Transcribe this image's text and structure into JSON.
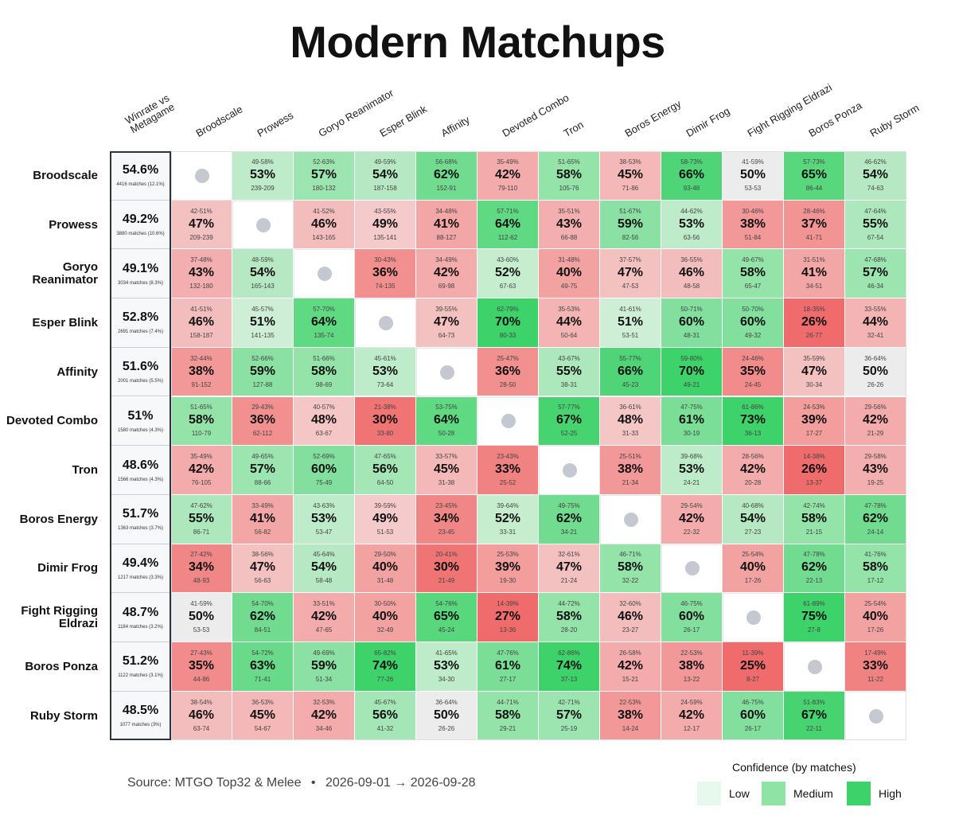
{
  "title": "Modern Matchups",
  "source": "Source: MTGO Top32 & Melee",
  "date_range": "2026-09-01 → 2026-09-28",
  "separator": "•",
  "legend": {
    "title": "Confidence (by matches)",
    "items": [
      {
        "label": "Low",
        "color": "#e7f8ec"
      },
      {
        "label": "Medium",
        "color": "#8fe3a4"
      },
      {
        "label": "High",
        "color": "#3ed26a"
      }
    ]
  },
  "colors": {
    "red_strong": "#f06b6b",
    "red_light": "#f5cfcf",
    "neutral": "#ececec",
    "green_light": "#d8f0dc",
    "green_strong": "#3ed26a",
    "diag_dot": "#c4c8d0",
    "overall_bg": "#f6f8fa"
  },
  "chart_data": {
    "type": "heatmap",
    "title": "Modern Matchups",
    "overall_header": "Winrate vs Metagame",
    "columns": [
      "Broodscale",
      "Prowess",
      "Goryo Reanimator",
      "Esper Blink",
      "Affinity",
      "Devoted Combo",
      "Tron",
      "Boros Energy",
      "Dimir Frog",
      "Fight Rigging Eldrazi",
      "Boros Ponza",
      "Ruby Storm"
    ],
    "rows": [
      {
        "name": "Broodscale",
        "overall": "54.6%",
        "matches": "4416 matches (12.1%)",
        "cells": [
          null,
          {
            "ci": "49-58%",
            "wr": 53,
            "rec": "239-209"
          },
          {
            "ci": "52-63%",
            "wr": 57,
            "rec": "180-132"
          },
          {
            "ci": "49-59%",
            "wr": 54,
            "rec": "187-158"
          },
          {
            "ci": "56-68%",
            "wr": 62,
            "rec": "152-91"
          },
          {
            "ci": "35-49%",
            "wr": 42,
            "rec": "79-110"
          },
          {
            "ci": "51-65%",
            "wr": 58,
            "rec": "105-76"
          },
          {
            "ci": "38-53%",
            "wr": 45,
            "rec": "71-86"
          },
          {
            "ci": "58-73%",
            "wr": 66,
            "rec": "93-48"
          },
          {
            "ci": "41-59%",
            "wr": 50,
            "rec": "53-53"
          },
          {
            "ci": "57-73%",
            "wr": 65,
            "rec": "86-44"
          },
          {
            "ci": "46-62%",
            "wr": 54,
            "rec": "74-63"
          }
        ]
      },
      {
        "name": "Prowess",
        "overall": "49.2%",
        "matches": "3880 matches (10.6%)",
        "cells": [
          {
            "ci": "42-51%",
            "wr": 47,
            "rec": "209-239"
          },
          null,
          {
            "ci": "41-52%",
            "wr": 46,
            "rec": "143-165"
          },
          {
            "ci": "43-55%",
            "wr": 49,
            "rec": "135-141"
          },
          {
            "ci": "34-48%",
            "wr": 41,
            "rec": "88-127"
          },
          {
            "ci": "57-71%",
            "wr": 64,
            "rec": "112-62"
          },
          {
            "ci": "35-51%",
            "wr": 43,
            "rec": "66-88"
          },
          {
            "ci": "51-67%",
            "wr": 59,
            "rec": "82-56"
          },
          {
            "ci": "44-62%",
            "wr": 53,
            "rec": "63-56"
          },
          {
            "ci": "30-46%",
            "wr": 38,
            "rec": "51-84"
          },
          {
            "ci": "28-46%",
            "wr": 37,
            "rec": "41-71"
          },
          {
            "ci": "47-64%",
            "wr": 55,
            "rec": "67-54"
          }
        ]
      },
      {
        "name": "Goryo Reanimator",
        "overall": "49.1%",
        "matches": "3034 matches (8.3%)",
        "cells": [
          {
            "ci": "37-48%",
            "wr": 43,
            "rec": "132-180"
          },
          {
            "ci": "48-59%",
            "wr": 54,
            "rec": "165-143"
          },
          null,
          {
            "ci": "30-43%",
            "wr": 36,
            "rec": "74-135"
          },
          {
            "ci": "34-49%",
            "wr": 42,
            "rec": "69-98"
          },
          {
            "ci": "43-60%",
            "wr": 52,
            "rec": "67-63"
          },
          {
            "ci": "31-48%",
            "wr": 40,
            "rec": "49-75"
          },
          {
            "ci": "37-57%",
            "wr": 47,
            "rec": "47-53"
          },
          {
            "ci": "36-55%",
            "wr": 46,
            "rec": "48-58"
          },
          {
            "ci": "49-67%",
            "wr": 58,
            "rec": "65-47"
          },
          {
            "ci": "31-51%",
            "wr": 41,
            "rec": "34-51"
          },
          {
            "ci": "47-68%",
            "wr": 57,
            "rec": "46-34"
          }
        ]
      },
      {
        "name": "Esper Blink",
        "overall": "52.8%",
        "matches": "2691 matches (7.4%)",
        "cells": [
          {
            "ci": "41-51%",
            "wr": 46,
            "rec": "158-187"
          },
          {
            "ci": "45-57%",
            "wr": 51,
            "rec": "141-135"
          },
          {
            "ci": "57-70%",
            "wr": 64,
            "rec": "135-74"
          },
          null,
          {
            "ci": "39-55%",
            "wr": 47,
            "rec": "64-73"
          },
          {
            "ci": "62-79%",
            "wr": 70,
            "rec": "80-33"
          },
          {
            "ci": "35-53%",
            "wr": 44,
            "rec": "50-64"
          },
          {
            "ci": "41-61%",
            "wr": 51,
            "rec": "53-51"
          },
          {
            "ci": "50-71%",
            "wr": 60,
            "rec": "48-31"
          },
          {
            "ci": "50-70%",
            "wr": 60,
            "rec": "49-32"
          },
          {
            "ci": "18-35%",
            "wr": 26,
            "rec": "26-77"
          },
          {
            "ci": "33-55%",
            "wr": 44,
            "rec": "32-41"
          }
        ]
      },
      {
        "name": "Affinity",
        "overall": "51.6%",
        "matches": "2001 matches (5.5%)",
        "cells": [
          {
            "ci": "32-44%",
            "wr": 38,
            "rec": "91-152"
          },
          {
            "ci": "52-66%",
            "wr": 59,
            "rec": "127-88"
          },
          {
            "ci": "51-66%",
            "wr": 58,
            "rec": "98-69"
          },
          {
            "ci": "45-61%",
            "wr": 53,
            "rec": "73-64"
          },
          null,
          {
            "ci": "25-47%",
            "wr": 36,
            "rec": "28-50"
          },
          {
            "ci": "43-67%",
            "wr": 55,
            "rec": "38-31"
          },
          {
            "ci": "55-77%",
            "wr": 66,
            "rec": "45-23"
          },
          {
            "ci": "59-80%",
            "wr": 70,
            "rec": "49-21"
          },
          {
            "ci": "24-46%",
            "wr": 35,
            "rec": "24-45"
          },
          {
            "ci": "35-59%",
            "wr": 47,
            "rec": "30-34"
          },
          {
            "ci": "36-64%",
            "wr": 50,
            "rec": "26-26"
          }
        ]
      },
      {
        "name": "Devoted Combo",
        "overall": "51%",
        "matches": "1580 matches (4.3%)",
        "cells": [
          {
            "ci": "51-65%",
            "wr": 58,
            "rec": "110-79"
          },
          {
            "ci": "29-43%",
            "wr": 36,
            "rec": "62-112"
          },
          {
            "ci": "40-57%",
            "wr": 48,
            "rec": "63-67"
          },
          {
            "ci": "21-38%",
            "wr": 30,
            "rec": "33-80"
          },
          {
            "ci": "53-75%",
            "wr": 64,
            "rec": "50-28"
          },
          null,
          {
            "ci": "57-77%",
            "wr": 67,
            "rec": "52-25"
          },
          {
            "ci": "36-61%",
            "wr": 48,
            "rec": "31-33"
          },
          {
            "ci": "47-75%",
            "wr": 61,
            "rec": "30-19"
          },
          {
            "ci": "61-86%",
            "wr": 73,
            "rec": "36-13"
          },
          {
            "ci": "24-53%",
            "wr": 39,
            "rec": "17-27"
          },
          {
            "ci": "29-56%",
            "wr": 42,
            "rec": "21-29"
          }
        ]
      },
      {
        "name": "Tron",
        "overall": "48.6%",
        "matches": "1566 matches (4.3%)",
        "cells": [
          {
            "ci": "35-49%",
            "wr": 42,
            "rec": "76-105"
          },
          {
            "ci": "49-65%",
            "wr": 57,
            "rec": "88-66"
          },
          {
            "ci": "52-69%",
            "wr": 60,
            "rec": "75-49"
          },
          {
            "ci": "47-65%",
            "wr": 56,
            "rec": "64-50"
          },
          {
            "ci": "33-57%",
            "wr": 45,
            "rec": "31-38"
          },
          {
            "ci": "23-43%",
            "wr": 33,
            "rec": "25-52"
          },
          null,
          {
            "ci": "25-51%",
            "wr": 38,
            "rec": "21-34"
          },
          {
            "ci": "39-68%",
            "wr": 53,
            "rec": "24-21"
          },
          {
            "ci": "28-56%",
            "wr": 42,
            "rec": "20-28"
          },
          {
            "ci": "14-38%",
            "wr": 26,
            "rec": "13-37"
          },
          {
            "ci": "29-58%",
            "wr": 43,
            "rec": "19-25"
          }
        ]
      },
      {
        "name": "Boros Energy",
        "overall": "51.7%",
        "matches": "1363 matches (3.7%)",
        "cells": [
          {
            "ci": "47-62%",
            "wr": 55,
            "rec": "86-71"
          },
          {
            "ci": "33-49%",
            "wr": 41,
            "rec": "56-82"
          },
          {
            "ci": "43-63%",
            "wr": 53,
            "rec": "53-47"
          },
          {
            "ci": "39-59%",
            "wr": 49,
            "rec": "51-53"
          },
          {
            "ci": "23-45%",
            "wr": 34,
            "rec": "23-45"
          },
          {
            "ci": "39-64%",
            "wr": 52,
            "rec": "33-31"
          },
          {
            "ci": "49-75%",
            "wr": 62,
            "rec": "34-21"
          },
          null,
          {
            "ci": "29-54%",
            "wr": 42,
            "rec": "22-32"
          },
          {
            "ci": "40-68%",
            "wr": 54,
            "rec": "27-23"
          },
          {
            "ci": "42-74%",
            "wr": 58,
            "rec": "21-15"
          },
          {
            "ci": "47-78%",
            "wr": 62,
            "rec": "24-14"
          }
        ]
      },
      {
        "name": "Dimir Frog",
        "overall": "49.4%",
        "matches": "1217 matches (3.3%)",
        "cells": [
          {
            "ci": "27-42%",
            "wr": 34,
            "rec": "48-93"
          },
          {
            "ci": "38-56%",
            "wr": 47,
            "rec": "56-63"
          },
          {
            "ci": "45-64%",
            "wr": 54,
            "rec": "58-48"
          },
          {
            "ci": "29-50%",
            "wr": 40,
            "rec": "31-48"
          },
          {
            "ci": "20-41%",
            "wr": 30,
            "rec": "21-49"
          },
          {
            "ci": "25-53%",
            "wr": 39,
            "rec": "19-30"
          },
          {
            "ci": "32-61%",
            "wr": 47,
            "rec": "21-24"
          },
          {
            "ci": "46-71%",
            "wr": 58,
            "rec": "32-22"
          },
          null,
          {
            "ci": "25-54%",
            "wr": 40,
            "rec": "17-26"
          },
          {
            "ci": "47-78%",
            "wr": 62,
            "rec": "22-13"
          },
          {
            "ci": "41-76%",
            "wr": 58,
            "rec": "17-12"
          }
        ]
      },
      {
        "name": "Fight Rigging Eldrazi",
        "overall": "48.7%",
        "matches": "1184 matches (3.2%)",
        "cells": [
          {
            "ci": "41-59%",
            "wr": 50,
            "rec": "53-53"
          },
          {
            "ci": "54-70%",
            "wr": 62,
            "rec": "84-51"
          },
          {
            "ci": "33-51%",
            "wr": 42,
            "rec": "47-65"
          },
          {
            "ci": "30-50%",
            "wr": 40,
            "rec": "32-49"
          },
          {
            "ci": "54-76%",
            "wr": 65,
            "rec": "45-24"
          },
          {
            "ci": "14-39%",
            "wr": 27,
            "rec": "13-36"
          },
          {
            "ci": "44-72%",
            "wr": 58,
            "rec": "28-20"
          },
          {
            "ci": "32-60%",
            "wr": 46,
            "rec": "23-27"
          },
          {
            "ci": "46-75%",
            "wr": 60,
            "rec": "26-17"
          },
          null,
          {
            "ci": "61-89%",
            "wr": 75,
            "rec": "27-8"
          },
          {
            "ci": "25-54%",
            "wr": 40,
            "rec": "17-26"
          }
        ]
      },
      {
        "name": "Boros Ponza",
        "overall": "51.2%",
        "matches": "1122 matches (3.1%)",
        "cells": [
          {
            "ci": "27-43%",
            "wr": 35,
            "rec": "44-86"
          },
          {
            "ci": "54-72%",
            "wr": 63,
            "rec": "71-41"
          },
          {
            "ci": "49-69%",
            "wr": 59,
            "rec": "51-34"
          },
          {
            "ci": "65-82%",
            "wr": 74,
            "rec": "77-26"
          },
          {
            "ci": "41-65%",
            "wr": 53,
            "rec": "34-30"
          },
          {
            "ci": "47-76%",
            "wr": 61,
            "rec": "27-17"
          },
          {
            "ci": "62-86%",
            "wr": 74,
            "rec": "37-13"
          },
          {
            "ci": "26-58%",
            "wr": 42,
            "rec": "15-21"
          },
          {
            "ci": "22-53%",
            "wr": 38,
            "rec": "13-22"
          },
          {
            "ci": "11-39%",
            "wr": 25,
            "rec": "8-27"
          },
          null,
          {
            "ci": "17-49%",
            "wr": 33,
            "rec": "11-22"
          }
        ]
      },
      {
        "name": "Ruby Storm",
        "overall": "48.5%",
        "matches": "1077 matches (3%)",
        "cells": [
          {
            "ci": "38-54%",
            "wr": 46,
            "rec": "63-74"
          },
          {
            "ci": "36-53%",
            "wr": 45,
            "rec": "54-67"
          },
          {
            "ci": "32-53%",
            "wr": 42,
            "rec": "34-46"
          },
          {
            "ci": "45-67%",
            "wr": 56,
            "rec": "41-32"
          },
          {
            "ci": "36-64%",
            "wr": 50,
            "rec": "26-26"
          },
          {
            "ci": "44-71%",
            "wr": 58,
            "rec": "29-21"
          },
          {
            "ci": "42-71%",
            "wr": 57,
            "rec": "25-19"
          },
          {
            "ci": "22-53%",
            "wr": 38,
            "rec": "14-24"
          },
          {
            "ci": "24-59%",
            "wr": 42,
            "rec": "12-17"
          },
          {
            "ci": "46-75%",
            "wr": 60,
            "rec": "26-17"
          },
          {
            "ci": "51-83%",
            "wr": 67,
            "rec": "22-11"
          },
          null
        ]
      }
    ]
  }
}
